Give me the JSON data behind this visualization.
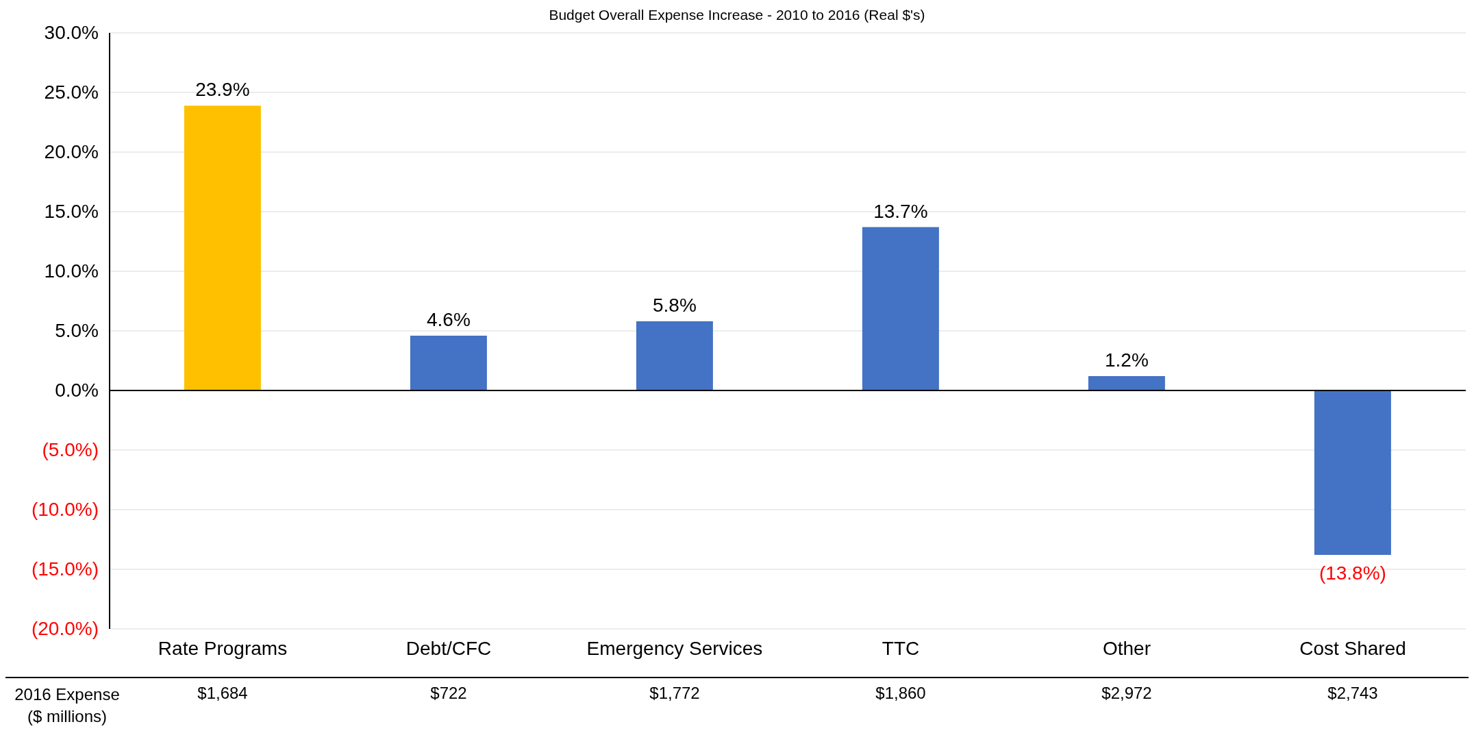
{
  "chart_data": {
    "type": "bar",
    "title": "Budget Overall Expense Increase - 2010 to 2016 (Real $'s)",
    "categories": [
      "Rate Programs",
      "Debt/CFC",
      "Emergency Services",
      "TTC",
      "Other",
      "Cost Shared"
    ],
    "values": [
      23.9,
      4.6,
      5.8,
      13.7,
      1.2,
      -13.8
    ],
    "colors": [
      "#ffc000",
      "#4472c4",
      "#4472c4",
      "#4472c4",
      "#4472c4",
      "#4472c4"
    ],
    "value_labels": [
      "23.9%",
      "4.6%",
      "5.8%",
      "13.7%",
      "1.2%",
      "(13.8%)"
    ],
    "ylim": [
      -20,
      30
    ],
    "yticks": [
      {
        "value": -20,
        "label": "(20.0%)"
      },
      {
        "value": -15,
        "label": "(15.0%)"
      },
      {
        "value": -10,
        "label": "(10.0%)"
      },
      {
        "value": -5,
        "label": "(5.0%)"
      },
      {
        "value": 0,
        "label": "0.0%"
      },
      {
        "value": 5,
        "label": "5.0%"
      },
      {
        "value": 10,
        "label": "10.0%"
      },
      {
        "value": 15,
        "label": "15.0%"
      },
      {
        "value": 20,
        "label": "20.0%"
      },
      {
        "value": 25,
        "label": "25.0%"
      },
      {
        "value": 30,
        "label": "30.0%"
      }
    ],
    "grid": "y",
    "annotations": [
      "2016 Expense ($ millions)",
      "$1,684",
      "$722",
      "$1,772",
      "$1,860",
      "$2,972",
      "$2,743"
    ]
  }
}
